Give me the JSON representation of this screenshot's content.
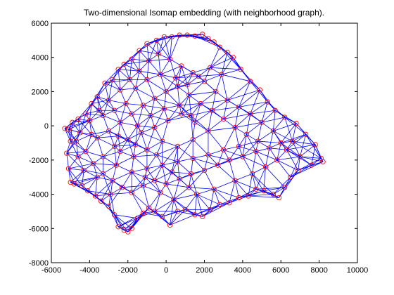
{
  "chart_data": {
    "type": "scatter",
    "title": "Two-dimensional Isomap embedding (with neighborhood graph).",
    "xlabel": "",
    "ylabel": "",
    "xlim": [
      -6000,
      10000
    ],
    "ylim": [
      -8000,
      6000
    ],
    "xticks": [
      "-6000",
      "-4000",
      "-2000",
      "0",
      "2000",
      "4000",
      "6000",
      "8000",
      "10000"
    ],
    "yticks": [
      "6000",
      "4000",
      "2000",
      "0",
      "-2000",
      "-4000",
      "-6000",
      "-8000"
    ],
    "grid": false,
    "colors": {
      "edges": "#0000ff",
      "points": "#ff0000"
    },
    "marker": "circle-open",
    "points": [
      [
        -5300,
        -150
      ],
      [
        -5100,
        -200
      ],
      [
        -4900,
        200
      ],
      [
        -4600,
        400
      ],
      [
        -4200,
        700
      ],
      [
        -3900,
        1300
      ],
      [
        -3600,
        1700
      ],
      [
        -3200,
        2500
      ],
      [
        -2800,
        2700
      ],
      [
        -2500,
        3300
      ],
      [
        -2200,
        3600
      ],
      [
        -1800,
        3900
      ],
      [
        -1400,
        4400
      ],
      [
        -1000,
        4800
      ],
      [
        -500,
        5000
      ],
      [
        -100,
        5200
      ],
      [
        300,
        5200
      ],
      [
        700,
        5300
      ],
      [
        1100,
        5300
      ],
      [
        1500,
        5250
      ],
      [
        1900,
        5350
      ],
      [
        2200,
        5100
      ],
      [
        2500,
        4900
      ],
      [
        2800,
        4600
      ],
      [
        3200,
        4300
      ],
      [
        3500,
        4000
      ],
      [
        3900,
        3300
      ],
      [
        4400,
        2600
      ],
      [
        4900,
        2100
      ],
      [
        5300,
        1400
      ],
      [
        5700,
        900
      ],
      [
        6200,
        500
      ],
      [
        6800,
        150
      ],
      [
        7300,
        -500
      ],
      [
        7800,
        -1100
      ],
      [
        8100,
        -1900
      ],
      [
        8200,
        -2100
      ],
      [
        7600,
        -2300
      ],
      [
        6900,
        -2600
      ],
      [
        6500,
        -3000
      ],
      [
        6200,
        -3600
      ],
      [
        5900,
        -4200
      ],
      [
        5600,
        -4000
      ],
      [
        5100,
        -3800
      ],
      [
        4700,
        -3700
      ],
      [
        4300,
        -4100
      ],
      [
        3800,
        -4200
      ],
      [
        3300,
        -4500
      ],
      [
        2800,
        -4600
      ],
      [
        2300,
        -4900
      ],
      [
        1900,
        -5300
      ],
      [
        1500,
        -5200
      ],
      [
        1000,
        -4900
      ],
      [
        600,
        -5000
      ],
      [
        200,
        -5800
      ],
      [
        -200,
        -5300
      ],
      [
        -600,
        -5000
      ],
      [
        -900,
        -4800
      ],
      [
        -1200,
        -5100
      ],
      [
        -1500,
        -5400
      ],
      [
        -1800,
        -6000
      ],
      [
        -2000,
        -6200
      ],
      [
        -2200,
        -6100
      ],
      [
        -2500,
        -5900
      ],
      [
        -2700,
        -5200
      ],
      [
        -3000,
        -4700
      ],
      [
        -3400,
        -4400
      ],
      [
        -3700,
        -4100
      ],
      [
        -4100,
        -3800
      ],
      [
        -4400,
        -3500
      ],
      [
        -4800,
        -3400
      ],
      [
        -5000,
        -3300
      ],
      [
        -5100,
        -2500
      ],
      [
        -5200,
        -1600
      ],
      [
        -5000,
        -900
      ],
      [
        -4200,
        -1500
      ],
      [
        -3800,
        -2200
      ],
      [
        -3300,
        -2800
      ],
      [
        -2800,
        -3200
      ],
      [
        -2300,
        -3600
      ],
      [
        -1800,
        -3900
      ],
      [
        -1200,
        -3500
      ],
      [
        -600,
        -3200
      ],
      [
        0,
        -3400
      ],
      [
        700,
        -3100
      ],
      [
        1300,
        -2800
      ],
      [
        2000,
        -2600
      ],
      [
        2700,
        -2300
      ],
      [
        3300,
        -2000
      ],
      [
        4000,
        -1800
      ],
      [
        4700,
        -1500
      ],
      [
        5400,
        -1300
      ],
      [
        6000,
        -1000
      ],
      [
        6600,
        -900
      ],
      [
        5600,
        -300
      ],
      [
        5000,
        200
      ],
      [
        4400,
        700
      ],
      [
        3800,
        1100
      ],
      [
        3200,
        1500
      ],
      [
        2600,
        2000
      ],
      [
        2000,
        2600
      ],
      [
        1400,
        3100
      ],
      [
        800,
        3500
      ],
      [
        200,
        3900
      ],
      [
        -400,
        4200
      ],
      [
        -900,
        3800
      ],
      [
        -1400,
        3200
      ],
      [
        -1900,
        2700
      ],
      [
        -2400,
        2100
      ],
      [
        -3000,
        1500
      ],
      [
        -3500,
        900
      ],
      [
        -4000,
        300
      ],
      [
        -4500,
        -400
      ],
      [
        -3600,
        -700
      ],
      [
        -3000,
        -300
      ],
      [
        -2400,
        200
      ],
      [
        -1800,
        700
      ],
      [
        -1200,
        1200
      ],
      [
        -600,
        1600
      ],
      [
        0,
        2000
      ],
      [
        600,
        2300
      ],
      [
        1200,
        1800
      ],
      [
        1800,
        1300
      ],
      [
        2400,
        900
      ],
      [
        3000,
        400
      ],
      [
        3600,
        -100
      ],
      [
        4200,
        -500
      ],
      [
        4800,
        -900
      ],
      [
        3800,
        -1200
      ],
      [
        3000,
        -1400
      ],
      [
        2200,
        -1700
      ],
      [
        1400,
        -1900
      ],
      [
        600,
        -2100
      ],
      [
        -200,
        -2300
      ],
      [
        -1000,
        -2500
      ],
      [
        -1800,
        -2700
      ],
      [
        -2600,
        -2300
      ],
      [
        -3300,
        -1800
      ],
      [
        -2700,
        -1200
      ],
      [
        -2000,
        -800
      ],
      [
        -1300,
        -400
      ],
      [
        -600,
        -100
      ],
      [
        100,
        300
      ],
      [
        800,
        700
      ],
      [
        1500,
        200
      ],
      [
        2200,
        -300
      ],
      [
        1400,
        -800
      ],
      [
        600,
        -1200
      ],
      [
        -200,
        -900
      ],
      [
        -1000,
        -1400
      ],
      [
        -1700,
        -1800
      ],
      [
        -2400,
        -1500
      ],
      [
        -1500,
        0
      ],
      [
        -800,
        600
      ],
      [
        -100,
        1000
      ],
      [
        700,
        1200
      ],
      [
        1300,
        600
      ],
      [
        -2100,
        1300
      ],
      [
        -1600,
        2200
      ],
      [
        -1000,
        2700
      ],
      [
        -300,
        3000
      ],
      [
        500,
        2800
      ],
      [
        1100,
        2400
      ],
      [
        1700,
        2900
      ],
      [
        2300,
        3400
      ],
      [
        2900,
        3000
      ],
      [
        -1100,
        -3000
      ],
      [
        -300,
        -3900
      ],
      [
        400,
        -4300
      ],
      [
        1200,
        -3600
      ],
      [
        -2900,
        -4000
      ],
      [
        -3600,
        -3000
      ],
      [
        -4300,
        -2600
      ],
      [
        -4600,
        -1800
      ],
      [
        -4700,
        -900
      ],
      [
        -3900,
        -500
      ],
      [
        -2500,
        -600
      ],
      [
        -1600,
        -1100
      ],
      [
        5200,
        -2400
      ],
      [
        5800,
        -2000
      ],
      [
        4500,
        -2800
      ],
      [
        3600,
        -3200
      ],
      [
        2500,
        -3700
      ],
      [
        1600,
        -4000
      ],
      [
        7000,
        -1800
      ],
      [
        6300,
        -1400
      ],
      [
        -3300,
        600
      ],
      [
        -2700,
        900
      ],
      [
        -500,
        -1700
      ],
      [
        300,
        -2700
      ]
    ]
  }
}
